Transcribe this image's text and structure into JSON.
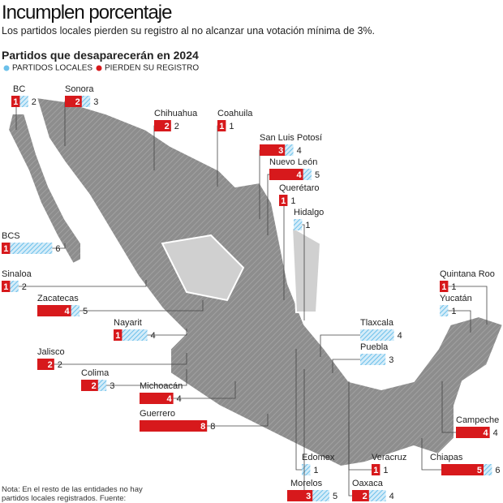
{
  "header": {
    "title": "Incumplen porcentaje",
    "subtitle": "Los partidos locales pierden su registro al no alcanzar una votación mínima de 3%.",
    "section": "Partidos que desaparecerán en 2024"
  },
  "legend": [
    {
      "label": "PARTIDOS LOCALES",
      "color": "#6cc0ea"
    },
    {
      "label": "PIERDEN SU REGISTRO",
      "color": "#d7191c"
    }
  ],
  "states": [
    {
      "name": "BC",
      "lose": 1,
      "total": 2
    },
    {
      "name": "Sonora",
      "lose": 2,
      "total": 3
    },
    {
      "name": "Chihuahua",
      "lose": 2,
      "total": 2
    },
    {
      "name": "Coahuila",
      "lose": 1,
      "total": 1
    },
    {
      "name": "San Luis Potosí",
      "lose": 3,
      "total": 4
    },
    {
      "name": "Nuevo León",
      "lose": 4,
      "total": 5
    },
    {
      "name": "Querétaro",
      "lose": 1,
      "total": 1
    },
    {
      "name": "Hidalgo",
      "lose": null,
      "total": 1
    },
    {
      "name": "BCS",
      "lose": 1,
      "total": 6
    },
    {
      "name": "Sinaloa",
      "lose": 1,
      "total": 2
    },
    {
      "name": "Zacatecas",
      "lose": 4,
      "total": 5
    },
    {
      "name": "Nayarit",
      "lose": 1,
      "total": 4
    },
    {
      "name": "Jalisco",
      "lose": 2,
      "total": 2
    },
    {
      "name": "Colima",
      "lose": 2,
      "total": 3
    },
    {
      "name": "Michoacán",
      "lose": 4,
      "total": 4
    },
    {
      "name": "Guerrero",
      "lose": 8,
      "total": 8
    },
    {
      "name": "Edomex",
      "lose": null,
      "total": 1
    },
    {
      "name": "Morelos",
      "lose": 3,
      "total": 5
    },
    {
      "name": "Oaxaca",
      "lose": 2,
      "total": 4
    },
    {
      "name": "Veracruz",
      "lose": 1,
      "total": 1
    },
    {
      "name": "Chiapas",
      "lose": 5,
      "total": 6
    },
    {
      "name": "Campeche",
      "lose": 4,
      "total": 4
    },
    {
      "name": "Quintana Roo",
      "lose": 1,
      "total": 1
    },
    {
      "name": "Yucatán",
      "lose": null,
      "total": 1
    },
    {
      "name": "Tlaxcala",
      "lose": null,
      "total": 4
    },
    {
      "name": "Puebla",
      "lose": null,
      "total": 3
    }
  ],
  "note": "Nota: En el resto de las entidades no hay partidos locales registrados. Fuente: Elaboración propia."
}
